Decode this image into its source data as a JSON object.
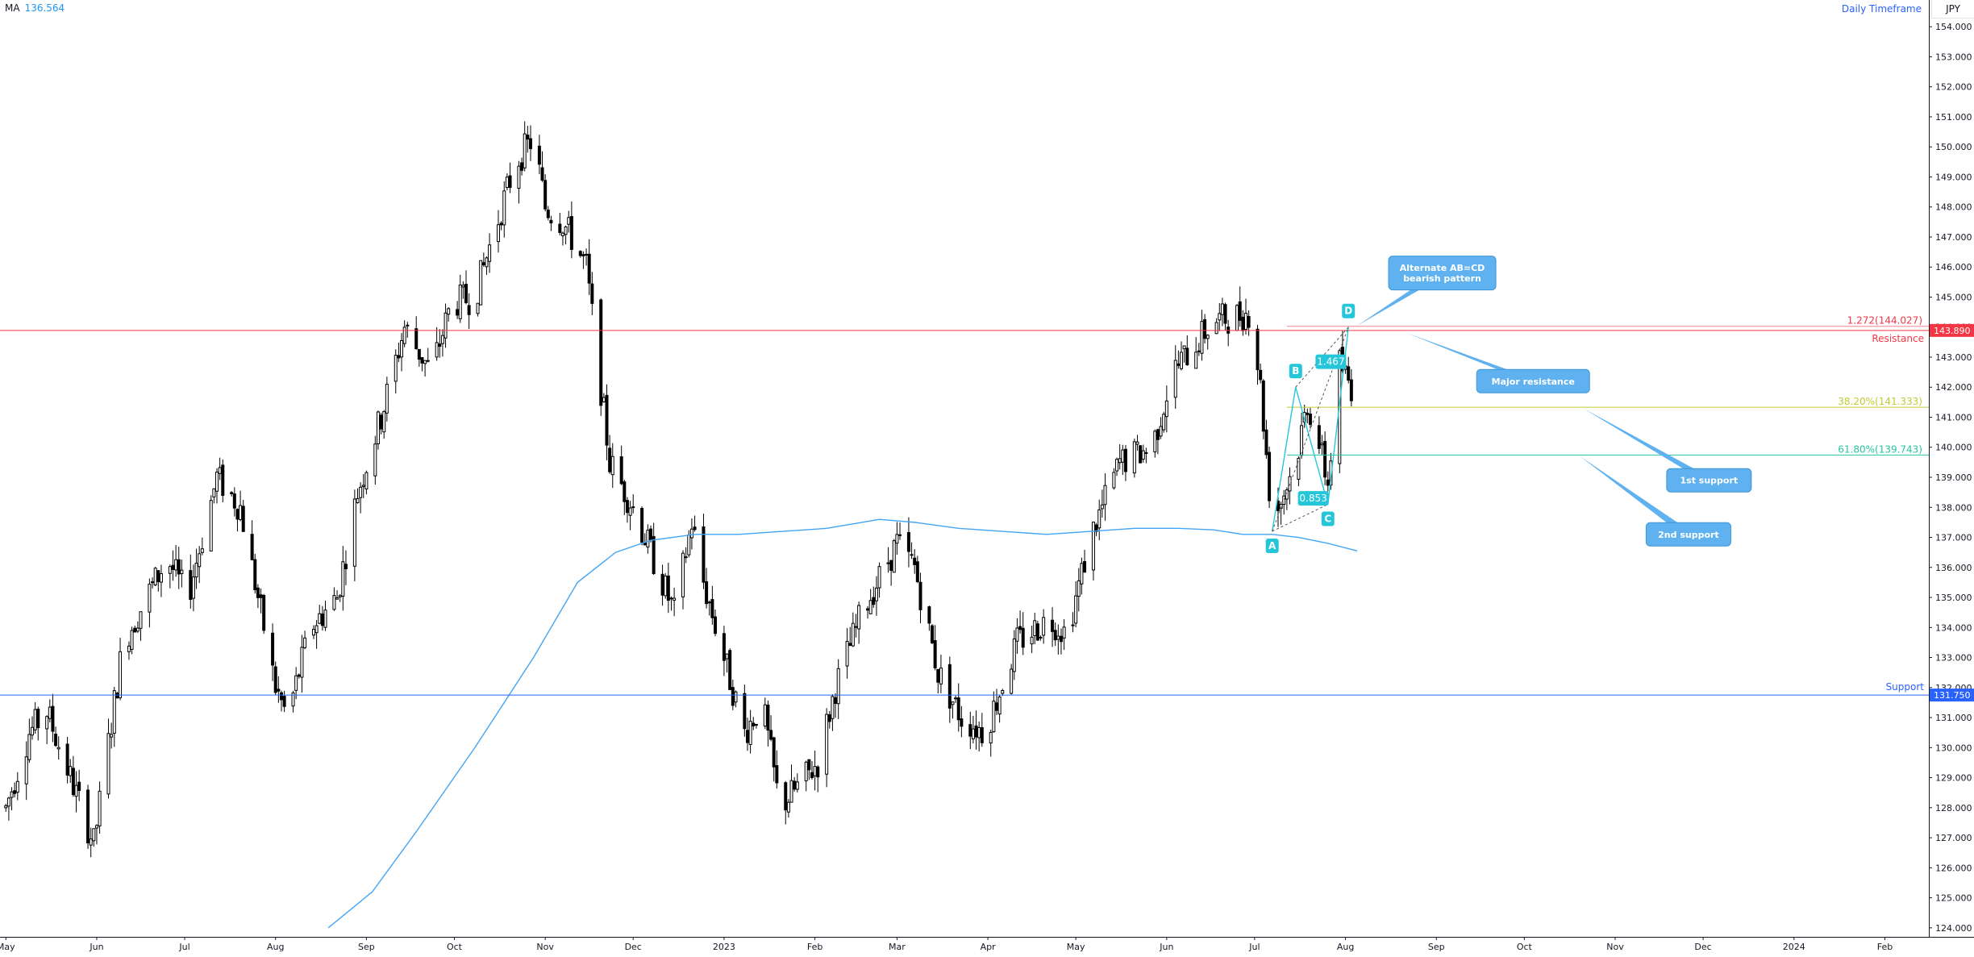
{
  "legend": {
    "name": "MA",
    "value": "136.564"
  },
  "timeframe_label": "Daily Timeframe",
  "currency": "JPY",
  "colors": {
    "up_candle": "#ffffff",
    "candle_outline": "#000000",
    "moving_average": "#42a5f5",
    "resistance": "#f23645",
    "support": "#2962ff",
    "fib_38": "#c0ca33",
    "fib_61": "#26c6a0",
    "pattern": "#26c6da",
    "callout": "#5fb2ef"
  },
  "chart_data": {
    "type": "candlestick",
    "instrument_note": "USD/JPY style daily chart",
    "y_axis": {
      "ylim": [
        123.7,
        154.3
      ],
      "tick_labels": [
        "154.000",
        "153.000",
        "152.000",
        "151.000",
        "150.000",
        "149.000",
        "148.000",
        "147.000",
        "146.000",
        "145.000",
        "144.000",
        "143.000",
        "142.000",
        "141.000",
        "140.000",
        "139.000",
        "138.000",
        "137.000",
        "136.000",
        "135.000",
        "134.000",
        "133.000",
        "132.000",
        "131.000",
        "130.000",
        "129.000",
        "128.000",
        "127.000",
        "126.000",
        "125.000",
        "124.000"
      ],
      "tick_values": [
        154,
        153,
        152,
        151,
        150,
        149,
        148,
        147,
        146,
        145,
        144,
        143,
        142,
        141,
        140,
        139,
        138,
        137,
        136,
        135,
        134,
        133,
        132,
        131,
        130,
        129,
        128,
        127,
        126,
        125,
        124
      ]
    },
    "x_axis": {
      "tick_labels": [
        "May",
        "Jun",
        "Jul",
        "Aug",
        "Sep",
        "Oct",
        "Nov",
        "Dec",
        "2023",
        "Feb",
        "Mar",
        "Apr",
        "May",
        "Jun",
        "Jul",
        "Aug",
        "Sep",
        "Oct",
        "Nov",
        "Dec",
        "2024",
        "Feb"
      ],
      "tick_days": [
        0,
        31,
        61,
        92,
        123,
        153,
        184,
        214,
        245,
        276,
        304,
        335,
        365,
        396,
        426,
        457,
        488,
        518,
        549,
        579,
        610,
        641
      ],
      "xlim_days": [
        -2,
        656
      ]
    },
    "price_path": [
      [
        0,
        128.0
      ],
      [
        8,
        130.5
      ],
      [
        14,
        131.2
      ],
      [
        22,
        129.0
      ],
      [
        30,
        126.8
      ],
      [
        40,
        133.5
      ],
      [
        55,
        136.3
      ],
      [
        62,
        135.0
      ],
      [
        72,
        139.0
      ],
      [
        80,
        138.0
      ],
      [
        88,
        134.0
      ],
      [
        92,
        132.0
      ],
      [
        96,
        131.0
      ],
      [
        104,
        134.0
      ],
      [
        113,
        135.0
      ],
      [
        120,
        138.5
      ],
      [
        128,
        141.0
      ],
      [
        136,
        144.0
      ],
      [
        145,
        142.5
      ],
      [
        152,
        144.8
      ],
      [
        160,
        145.0
      ],
      [
        166,
        147.0
      ],
      [
        174,
        149.5
      ],
      [
        180,
        150.3
      ],
      [
        184,
        148.0
      ],
      [
        190,
        147.5
      ],
      [
        194,
        146.8
      ],
      [
        198,
        146.0
      ],
      [
        206,
        139.5
      ],
      [
        214,
        138.0
      ],
      [
        222,
        136.0
      ],
      [
        228,
        134.5
      ],
      [
        234,
        137.5
      ],
      [
        238,
        135.5
      ],
      [
        245,
        133.0
      ],
      [
        252,
        130.5
      ],
      [
        258,
        131.5
      ],
      [
        264,
        128.0
      ],
      [
        271,
        128.8
      ],
      [
        277,
        129.5
      ],
      [
        283,
        132.0
      ],
      [
        292,
        134.5
      ],
      [
        304,
        136.8
      ],
      [
        310,
        136.0
      ],
      [
        318,
        132.5
      ],
      [
        326,
        131.0
      ],
      [
        334,
        130.5
      ],
      [
        345,
        133.5
      ],
      [
        356,
        134.3
      ],
      [
        362,
        133.8
      ],
      [
        370,
        137.0
      ],
      [
        380,
        139.5
      ],
      [
        391,
        140.0
      ],
      [
        398,
        142.5
      ],
      [
        412,
        144.2
      ],
      [
        425,
        144.5
      ],
      [
        428,
        142.0
      ],
      [
        432,
        137.5
      ],
      [
        436,
        138.5
      ],
      [
        440,
        139.5
      ],
      [
        444,
        141.5
      ],
      [
        447,
        140.5
      ],
      [
        451,
        138.8
      ],
      [
        455,
        142.8
      ],
      [
        459,
        142.0
      ],
      [
        461,
        141.5
      ]
    ],
    "moving_average": [
      [
        110,
        124.0
      ],
      [
        125,
        125.2
      ],
      [
        140,
        127.2
      ],
      [
        160,
        130.0
      ],
      [
        180,
        133.0
      ],
      [
        195,
        135.5
      ],
      [
        208,
        136.5
      ],
      [
        220,
        136.9
      ],
      [
        235,
        137.1
      ],
      [
        250,
        137.1
      ],
      [
        265,
        137.2
      ],
      [
        280,
        137.3
      ],
      [
        292,
        137.5
      ],
      [
        298,
        137.6
      ],
      [
        310,
        137.5
      ],
      [
        325,
        137.3
      ],
      [
        340,
        137.2
      ],
      [
        355,
        137.1
      ],
      [
        370,
        137.2
      ],
      [
        385,
        137.3
      ],
      [
        400,
        137.3
      ],
      [
        412,
        137.25
      ],
      [
        422,
        137.1
      ],
      [
        432,
        137.1
      ],
      [
        441,
        137.0
      ],
      [
        451,
        136.8
      ],
      [
        461,
        136.55
      ]
    ],
    "horizontal_levels": [
      {
        "name": "resistance",
        "value": 143.89,
        "label": "Resistance",
        "tag": "143.890"
      },
      {
        "name": "support",
        "value": 131.75,
        "label": "Support",
        "tag": "131.750"
      }
    ],
    "fibonacci": [
      {
        "label": "1.272(144.027)",
        "value": 144.027,
        "start_day": 437
      },
      {
        "label": "38.20%(141.333)",
        "value": 141.333,
        "start_day": 437
      },
      {
        "label": "61.80%(139.743)",
        "value": 139.743,
        "start_day": 437
      }
    ],
    "abcd_pattern": {
      "points": [
        {
          "label": "A",
          "day": 432,
          "price": 137.2
        },
        {
          "label": "B",
          "day": 440,
          "price": 142.0
        },
        {
          "label": "C",
          "day": 451,
          "price": 138.1
        },
        {
          "label": "D",
          "day": 458,
          "price": 144.0
        }
      ],
      "ratio_labels": [
        {
          "label": "0.853",
          "day": 446,
          "price": 138.3
        },
        {
          "label": "1.467",
          "day": 452,
          "price": 142.85
        }
      ]
    },
    "callouts": [
      {
        "label": "Alternate AB=CD\nbearish pattern",
        "box_day": 490,
        "box_price": 145.8,
        "tip_day": 461,
        "tip_price": 144.05
      },
      {
        "label": "Major resistance",
        "box_day": 521,
        "box_price": 142.2,
        "tip_day": 478,
        "tip_price": 143.8
      },
      {
        "label": "1st support",
        "box_day": 581,
        "box_price": 138.9,
        "tip_day": 538,
        "tip_price": 141.3
      },
      {
        "label": "2nd support",
        "box_day": 574,
        "box_price": 137.1,
        "tip_day": 537,
        "tip_price": 139.7
      }
    ]
  }
}
